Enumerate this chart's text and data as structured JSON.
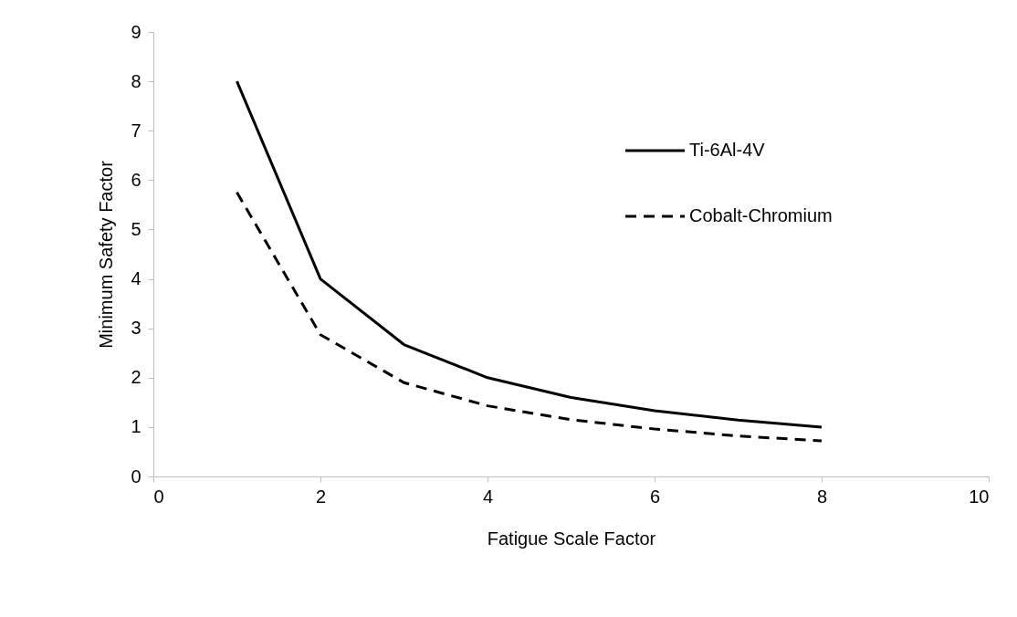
{
  "chart_data": {
    "type": "line",
    "xlabel": "Fatigue Scale Factor",
    "ylabel": "Minimum Safety Factor",
    "x": [
      1,
      2,
      3,
      4,
      5,
      6,
      7,
      8
    ],
    "series": [
      {
        "name": "Ti-6Al-4V",
        "color": "#000000",
        "line_style": "solid",
        "values": [
          8,
          4,
          2.67,
          2,
          1.6,
          1.33,
          1.14,
          1
        ]
      },
      {
        "name": "Cobalt-Chromium",
        "color": "#000000",
        "line_style": "dashed",
        "values": [
          5.75,
          2.87,
          1.9,
          1.43,
          1.15,
          0.96,
          0.82,
          0.72
        ]
      }
    ],
    "xlim": [
      0,
      10
    ],
    "xticks": [
      0,
      2,
      4,
      6,
      8,
      10
    ],
    "ylim": [
      0,
      9
    ],
    "yticks": [
      0,
      1,
      2,
      3,
      4,
      5,
      6,
      7,
      8,
      9
    ],
    "grid": false,
    "legend": "top right",
    "marker": "none"
  }
}
